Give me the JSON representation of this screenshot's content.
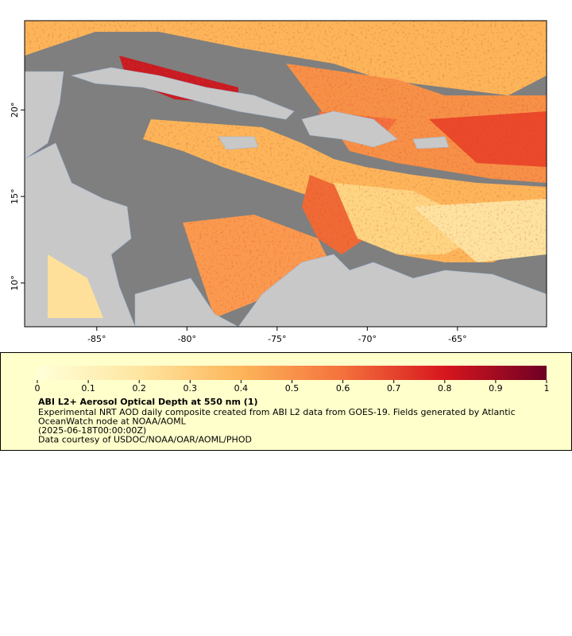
{
  "map": {
    "xlim": [
      -89.0,
      -60.06
    ],
    "ylim": [
      7.47,
      25.16
    ],
    "xticks": [
      {
        "value": -85,
        "label": "-85°"
      },
      {
        "value": -80,
        "label": "-80°"
      },
      {
        "value": -75,
        "label": "-75°"
      },
      {
        "value": -70,
        "label": "-70°"
      },
      {
        "value": -65,
        "label": "-65°"
      }
    ],
    "yticks": [
      {
        "value": 10,
        "label": "10°"
      },
      {
        "value": 15,
        "label": "15°"
      },
      {
        "value": 20,
        "label": "20°"
      }
    ]
  },
  "legend": {
    "colorbar": {
      "lim": [
        0,
        1
      ],
      "ticks": [
        0,
        0.1,
        0.2,
        0.3,
        0.4,
        0.5,
        0.6,
        0.7,
        0.8,
        0.9,
        1
      ]
    },
    "title": "ABI L2+ Aerosol Optical Depth at 550 nm (1)",
    "lines": [
      "Experimental NRT AOD daily composite created from ABI L2 data from GOES-19. Fields generated by Atlantic",
      "OceanWatch node at NOAA/AOML",
      "(2025-06-18T00:00:00Z)",
      "Data courtesy of USDOC/NOAA/OAR/AOML/PHOD"
    ]
  }
}
